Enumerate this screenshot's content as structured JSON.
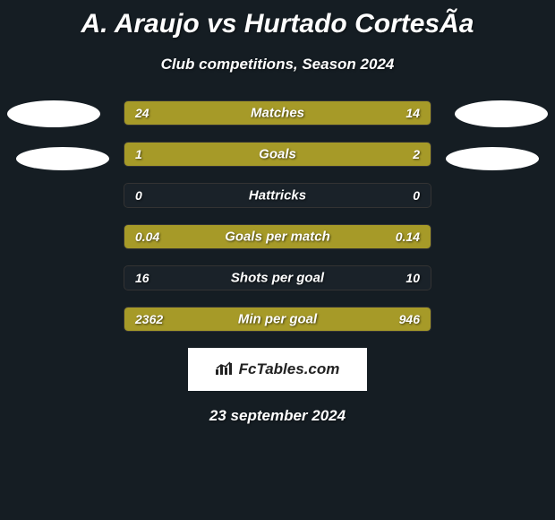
{
  "title": "A. Araujo vs Hurtado CortesÃ­a",
  "subtitle": "Club competitions, Season 2024",
  "date": "23 september 2024",
  "logo_text": "FcTables.com",
  "background_color": "#151d23",
  "bar_left_color": "#a69a28",
  "bar_right_color": "#a69a28",
  "stats": [
    {
      "label": "Matches",
      "left_val": "24",
      "right_val": "14",
      "left_pct": 63.2,
      "right_pct": 36.8
    },
    {
      "label": "Goals",
      "left_val": "1",
      "right_val": "2",
      "left_pct": 33.3,
      "right_pct": 66.7
    },
    {
      "label": "Hattricks",
      "left_val": "0",
      "right_val": "0",
      "left_pct": 0,
      "right_pct": 0
    },
    {
      "label": "Goals per match",
      "left_val": "0.04",
      "right_val": "0.14",
      "left_pct": 22.2,
      "right_pct": 77.8
    },
    {
      "label": "Shots per goal",
      "left_val": "16",
      "right_val": "10",
      "left_pct": 0,
      "right_pct": 0
    },
    {
      "label": "Min per goal",
      "left_val": "2362",
      "right_val": "946",
      "left_pct": 40,
      "right_pct": 60
    }
  ]
}
